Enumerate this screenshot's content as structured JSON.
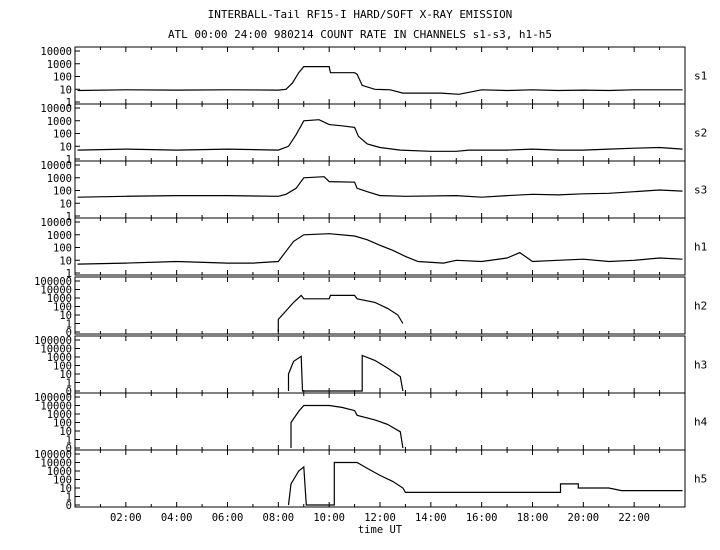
{
  "chart_data": {
    "type": "line",
    "title": "INTERBALL-Tail RF15-I HARD/SOFT X-RAY EMISSION",
    "subtitle": "ATL 00:00 24:00 980214  COUNT RATE IN CHANNELS s1-s3, h1-h5",
    "xlabel": "time UT",
    "xlim": [
      0,
      24
    ],
    "x_ticks": [
      "02:00",
      "04:00",
      "06:00",
      "08:00",
      "10:00",
      "12:00",
      "14:00",
      "16:00",
      "18:00",
      "20:00",
      "22:00"
    ],
    "y_scale": "log",
    "panels": [
      {
        "name": "s1",
        "ylim": [
          1,
          10000
        ],
        "y_ticks": [
          "1",
          "10",
          "100",
          "1000",
          "10000"
        ],
        "points": [
          [
            0.1,
            8
          ],
          [
            2,
            9
          ],
          [
            4,
            8.5
          ],
          [
            6,
            9
          ],
          [
            8,
            8.5
          ],
          [
            8.3,
            10
          ],
          [
            8.55,
            30
          ],
          [
            8.8,
            200
          ],
          [
            9.0,
            600
          ],
          [
            10.0,
            600
          ],
          [
            10.05,
            200
          ],
          [
            11.0,
            200
          ],
          [
            11.1,
            150
          ],
          [
            11.3,
            20
          ],
          [
            11.8,
            10
          ],
          [
            12.4,
            9
          ],
          [
            12.9,
            5
          ],
          [
            14.4,
            5
          ],
          [
            15.1,
            4
          ],
          [
            16.0,
            9
          ],
          [
            17.0,
            8
          ],
          [
            18.0,
            9
          ],
          [
            19.0,
            8
          ],
          [
            20.0,
            8.5
          ],
          [
            21.0,
            8
          ],
          [
            22.0,
            9
          ],
          [
            23.0,
            9
          ],
          [
            23.9,
            9
          ]
        ]
      },
      {
        "name": "s2",
        "ylim": [
          1,
          10000
        ],
        "y_ticks": [
          "1",
          "10",
          "100",
          "1000",
          "10000"
        ],
        "points": [
          [
            0.1,
            5
          ],
          [
            2,
            6
          ],
          [
            4,
            5
          ],
          [
            6,
            6
          ],
          [
            8,
            5
          ],
          [
            8.4,
            10
          ],
          [
            8.7,
            80
          ],
          [
            9.0,
            1000
          ],
          [
            9.6,
            1200
          ],
          [
            10.0,
            500
          ],
          [
            10.5,
            400
          ],
          [
            11.0,
            300
          ],
          [
            11.15,
            60
          ],
          [
            11.5,
            15
          ],
          [
            12.0,
            8
          ],
          [
            12.8,
            5
          ],
          [
            14.0,
            4
          ],
          [
            15.0,
            4
          ],
          [
            15.5,
            5
          ],
          [
            17.0,
            5
          ],
          [
            18.0,
            6
          ],
          [
            19.0,
            5
          ],
          [
            20.0,
            5
          ],
          [
            21.0,
            6
          ],
          [
            22.0,
            7
          ],
          [
            23.0,
            8
          ],
          [
            23.9,
            6
          ]
        ]
      },
      {
        "name": "s3",
        "ylim": [
          1,
          10000
        ],
        "y_ticks": [
          "1",
          "10",
          "100",
          "1000",
          "10000"
        ],
        "points": [
          [
            0.1,
            30
          ],
          [
            2,
            35
          ],
          [
            4,
            40
          ],
          [
            6,
            40
          ],
          [
            8,
            35
          ],
          [
            8.3,
            50
          ],
          [
            8.7,
            150
          ],
          [
            9.0,
            1000
          ],
          [
            9.8,
            1200
          ],
          [
            10.0,
            500
          ],
          [
            11.0,
            450
          ],
          [
            11.1,
            150
          ],
          [
            11.5,
            80
          ],
          [
            12.0,
            40
          ],
          [
            13.0,
            35
          ],
          [
            15.0,
            40
          ],
          [
            16.0,
            30
          ],
          [
            17.0,
            40
          ],
          [
            18.0,
            50
          ],
          [
            19.0,
            45
          ],
          [
            20.0,
            55
          ],
          [
            21.0,
            60
          ],
          [
            22.0,
            80
          ],
          [
            23.0,
            110
          ],
          [
            23.9,
            90
          ]
        ]
      },
      {
        "name": "h1",
        "ylim": [
          1,
          10000
        ],
        "y_ticks": [
          "1",
          "10",
          "100",
          "1000",
          "10000"
        ],
        "points": [
          [
            0.1,
            5
          ],
          [
            2,
            6
          ],
          [
            4,
            8
          ],
          [
            6,
            6
          ],
          [
            7,
            6
          ],
          [
            8.0,
            8
          ],
          [
            8.3,
            50
          ],
          [
            8.6,
            300
          ],
          [
            9.0,
            1000
          ],
          [
            10.0,
            1200
          ],
          [
            11.0,
            800
          ],
          [
            11.5,
            400
          ],
          [
            12.0,
            150
          ],
          [
            12.5,
            60
          ],
          [
            13.0,
            20
          ],
          [
            13.5,
            8
          ],
          [
            14.5,
            6
          ],
          [
            15.0,
            10
          ],
          [
            16.0,
            8
          ],
          [
            17.0,
            15
          ],
          [
            17.5,
            40
          ],
          [
            18.0,
            8
          ],
          [
            19.0,
            10
          ],
          [
            20.0,
            12
          ],
          [
            21.0,
            8
          ],
          [
            22.0,
            10
          ],
          [
            23.0,
            15
          ],
          [
            23.9,
            12
          ]
        ]
      },
      {
        "name": "h2",
        "ylim": [
          0,
          100000
        ],
        "y_ticks": [
          "0",
          "1",
          "10",
          "100",
          "1000",
          "10000",
          "100000"
        ],
        "points": [
          [
            8.0,
            0
          ],
          [
            8.0,
            3
          ],
          [
            8.3,
            30
          ],
          [
            8.6,
            300
          ],
          [
            8.9,
            2000
          ],
          [
            9.0,
            800
          ],
          [
            9.1,
            800
          ],
          [
            10.0,
            800
          ],
          [
            10.05,
            2000
          ],
          [
            11.0,
            2000
          ],
          [
            11.1,
            800
          ],
          [
            11.8,
            300
          ],
          [
            12.3,
            60
          ],
          [
            12.7,
            10
          ],
          [
            12.9,
            1
          ]
        ]
      },
      {
        "name": "h3",
        "ylim": [
          0,
          100000
        ],
        "y_ticks": [
          "0",
          "1",
          "10",
          "100",
          "1000",
          "10000",
          "100000"
        ],
        "points": [
          [
            8.4,
            0
          ],
          [
            8.4,
            10
          ],
          [
            8.6,
            300
          ],
          [
            8.9,
            1200
          ],
          [
            8.95,
            0
          ],
          [
            11.3,
            0
          ],
          [
            11.3,
            1500
          ],
          [
            11.8,
            400
          ],
          [
            12.3,
            50
          ],
          [
            12.8,
            5
          ],
          [
            12.9,
            0
          ]
        ]
      },
      {
        "name": "h4",
        "ylim": [
          0,
          100000
        ],
        "y_ticks": [
          "0",
          "1",
          "10",
          "100",
          "1000",
          "10000",
          "100000"
        ],
        "points": [
          [
            8.5,
            0
          ],
          [
            8.5,
            100
          ],
          [
            8.8,
            2000
          ],
          [
            9.0,
            10000
          ],
          [
            10.0,
            10000
          ],
          [
            10.5,
            6000
          ],
          [
            11.0,
            2500
          ],
          [
            11.1,
            700
          ],
          [
            11.8,
            200
          ],
          [
            12.3,
            60
          ],
          [
            12.8,
            8
          ],
          [
            12.9,
            0
          ]
        ]
      },
      {
        "name": "h5",
        "ylim": [
          0,
          100000
        ],
        "y_ticks": [
          "0",
          "1",
          "10",
          "100",
          "1000",
          "10000",
          "100000"
        ],
        "points": [
          [
            8.4,
            0
          ],
          [
            8.5,
            30
          ],
          [
            8.8,
            1000
          ],
          [
            9.0,
            3000
          ],
          [
            9.1,
            0
          ],
          [
            10.2,
            0
          ],
          [
            10.2,
            10000
          ],
          [
            11.1,
            10000
          ],
          [
            11.5,
            2000
          ],
          [
            12.0,
            300
          ],
          [
            12.5,
            60
          ],
          [
            12.9,
            10
          ],
          [
            13.0,
            3
          ],
          [
            19.1,
            3
          ],
          [
            19.1,
            30
          ],
          [
            19.8,
            30
          ],
          [
            19.8,
            10
          ],
          [
            21.0,
            10
          ],
          [
            21.5,
            5
          ],
          [
            23.9,
            5
          ]
        ]
      }
    ]
  }
}
